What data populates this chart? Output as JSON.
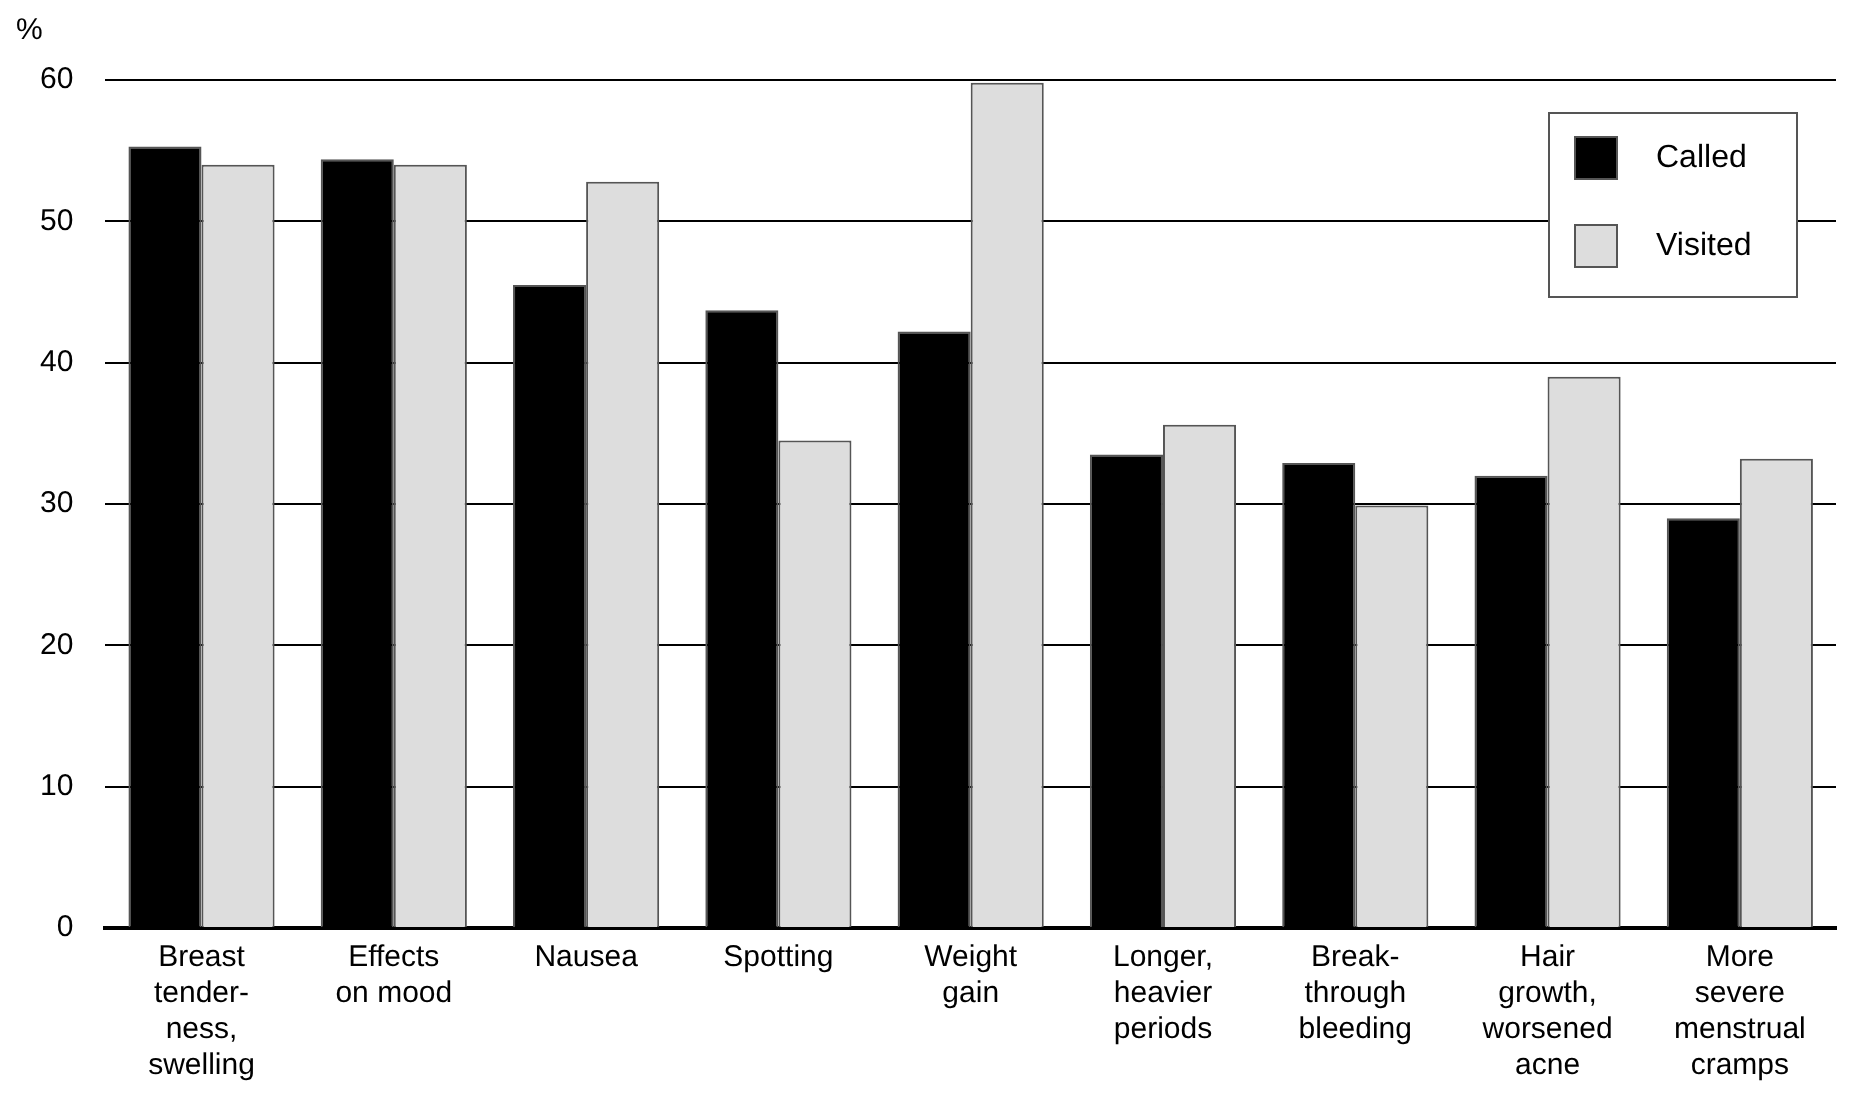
{
  "chart_data": {
    "type": "bar",
    "ylabel": "%",
    "categories": [
      "Breast\ntender-\nness,\nswelling",
      "Effects\non mood",
      "Nausea",
      "Spotting",
      "Weight\ngain",
      "Longer,\nheavier\nperiods",
      "Break-\nthrough\nbleeding",
      "Hair\ngrowth,\nworsened\nacne",
      "More\nsevere\nmenstrual\ncramps"
    ],
    "series": [
      {
        "name": "Called",
        "color": "#000000",
        "values": [
          55.3,
          54.4,
          45.5,
          43.7,
          42.2,
          33.5,
          32.9,
          32.0,
          29.0
        ]
      },
      {
        "name": "Visited",
        "color": "#dddddd",
        "values": [
          54.0,
          54.0,
          52.8,
          34.5,
          59.8,
          35.6,
          29.9,
          39.0,
          33.2
        ]
      }
    ],
    "ylim": [
      0,
      60
    ],
    "yticks": [
      0,
      10,
      20,
      30,
      40,
      50,
      60
    ],
    "grid": "y",
    "legend": "top right"
  }
}
